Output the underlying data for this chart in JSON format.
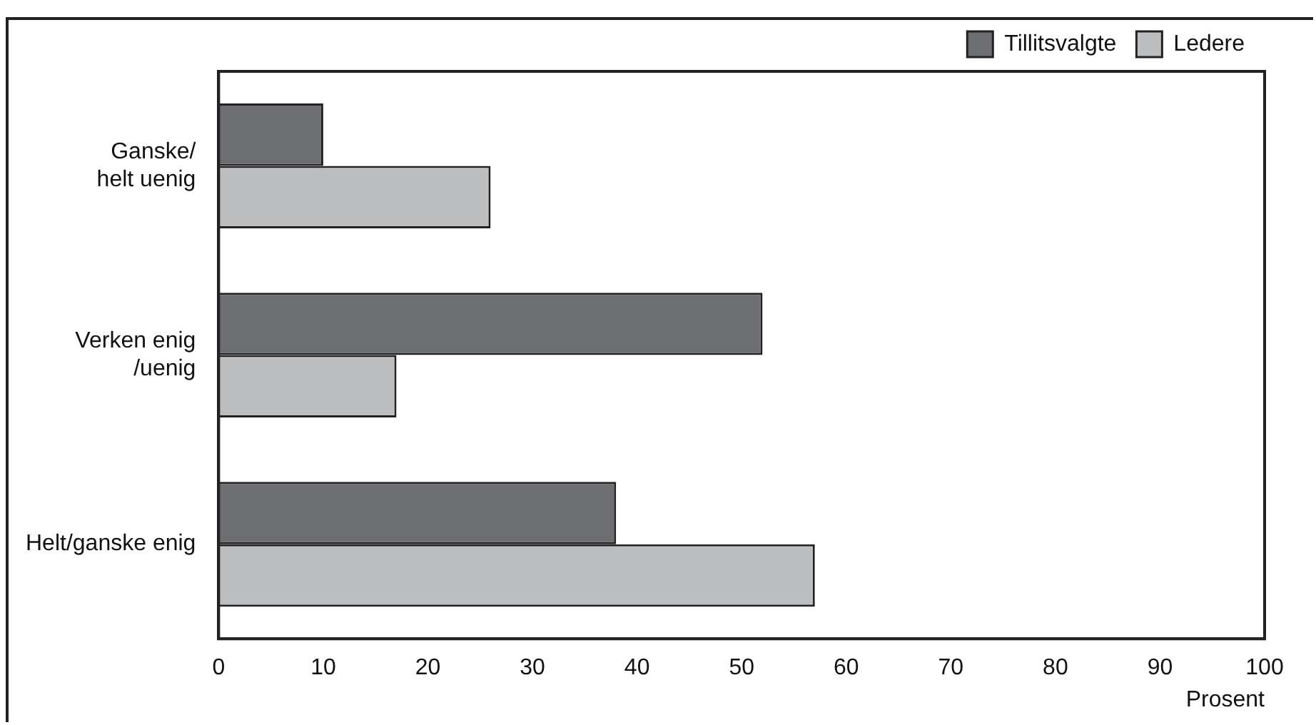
{
  "chart_data": {
    "type": "bar",
    "orientation": "horizontal",
    "categories": [
      "Ganske/\nhelt uenig",
      "Verken enig\n/uenig",
      "Helt/ganske enig"
    ],
    "series": [
      {
        "name": "Tillitsvalgte",
        "color": "#6d6e71",
        "values": [
          10,
          52,
          38
        ]
      },
      {
        "name": "Ledere",
        "color": "#bcbec0",
        "values": [
          26,
          17,
          57
        ]
      }
    ],
    "xlabel": "Prosent",
    "xlim": [
      0,
      100
    ],
    "xticks": [
      0,
      10,
      20,
      30,
      40,
      50,
      60,
      70,
      80,
      90,
      100
    ],
    "grid": false,
    "legend": "top right"
  }
}
